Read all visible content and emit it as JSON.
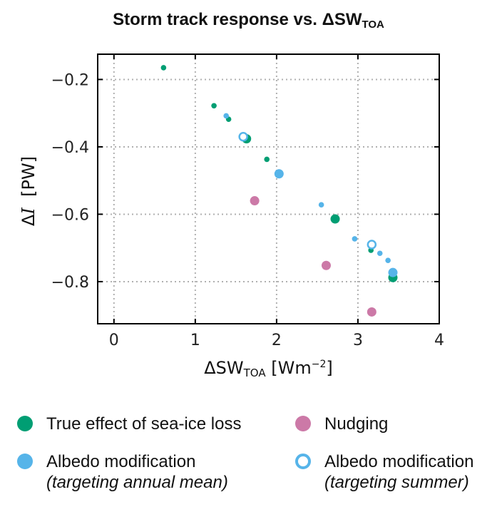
{
  "colors": {
    "green": "#009e73",
    "blue": "#56b4e9",
    "pink": "#cc79a7"
  },
  "chart_data": {
    "type": "scatter",
    "title_main": "Storm track response vs. ΔSW",
    "title_sub": "TOA",
    "xlabel_main": "ΔSW",
    "xlabel_sub": "TOA",
    "xlabel_unit": " [Wm",
    "xlabel_exp": "−2",
    "xlabel_close": "]",
    "ylabel_delta": "Δ",
    "ylabel_var": "I",
    "ylabel_unit": "  [PW]",
    "xlim": [
      -0.2,
      4.0
    ],
    "ylim": [
      -0.925,
      -0.125
    ],
    "xticks": [
      0,
      1,
      2,
      3,
      4
    ],
    "xtick_labels": [
      "0",
      "1",
      "2",
      "3",
      "4"
    ],
    "yticks": [
      -0.2,
      -0.4,
      -0.6,
      -0.8
    ],
    "ytick_labels": [
      "−0.2",
      "−0.4",
      "−0.6",
      "−0.8"
    ],
    "grid": true,
    "series": [
      {
        "name": "True effect of sea-ice loss",
        "marker": "filled",
        "color": "#009e73",
        "points": [
          {
            "x": 0.61,
            "y": -0.165,
            "size": "small"
          },
          {
            "x": 1.23,
            "y": -0.278,
            "size": "small"
          },
          {
            "x": 1.41,
            "y": -0.318,
            "size": "small"
          },
          {
            "x": 1.63,
            "y": -0.376,
            "size": "large"
          },
          {
            "x": 1.88,
            "y": -0.437,
            "size": "small"
          },
          {
            "x": 2.72,
            "y": -0.614,
            "size": "large"
          },
          {
            "x": 3.16,
            "y": -0.707,
            "size": "small"
          },
          {
            "x": 3.43,
            "y": -0.788,
            "size": "large"
          }
        ]
      },
      {
        "name": "Nudging",
        "marker": "filled",
        "color": "#cc79a7",
        "points": [
          {
            "x": 1.73,
            "y": -0.56,
            "size": "large"
          },
          {
            "x": 2.61,
            "y": -0.752,
            "size": "large"
          },
          {
            "x": 3.17,
            "y": -0.89,
            "size": "large"
          }
        ]
      },
      {
        "name": "Albedo modification (targeting annual mean)",
        "marker": "filled",
        "color": "#56b4e9",
        "points": [
          {
            "x": 1.38,
            "y": -0.308,
            "size": "small"
          },
          {
            "x": 2.03,
            "y": -0.48,
            "size": "large"
          },
          {
            "x": 2.55,
            "y": -0.572,
            "size": "small"
          },
          {
            "x": 2.96,
            "y": -0.673,
            "size": "small"
          },
          {
            "x": 3.27,
            "y": -0.716,
            "size": "small"
          },
          {
            "x": 3.37,
            "y": -0.737,
            "size": "small"
          },
          {
            "x": 3.43,
            "y": -0.773,
            "size": "large"
          }
        ]
      },
      {
        "name": "Albedo modification (targeting summer)",
        "marker": "hollow",
        "color": "#56b4e9",
        "points": [
          {
            "x": 1.59,
            "y": -0.37,
            "size": "large"
          },
          {
            "x": 3.17,
            "y": -0.69,
            "size": "large"
          }
        ]
      }
    ]
  },
  "legend": {
    "true_effect": "True effect of sea-ice loss",
    "nudging": "Nudging",
    "albedo_annual": "Albedo modification",
    "albedo_annual_note": "(targeting annual mean)",
    "albedo_summer": "Albedo modification",
    "albedo_summer_note": "(targeting summer)"
  }
}
